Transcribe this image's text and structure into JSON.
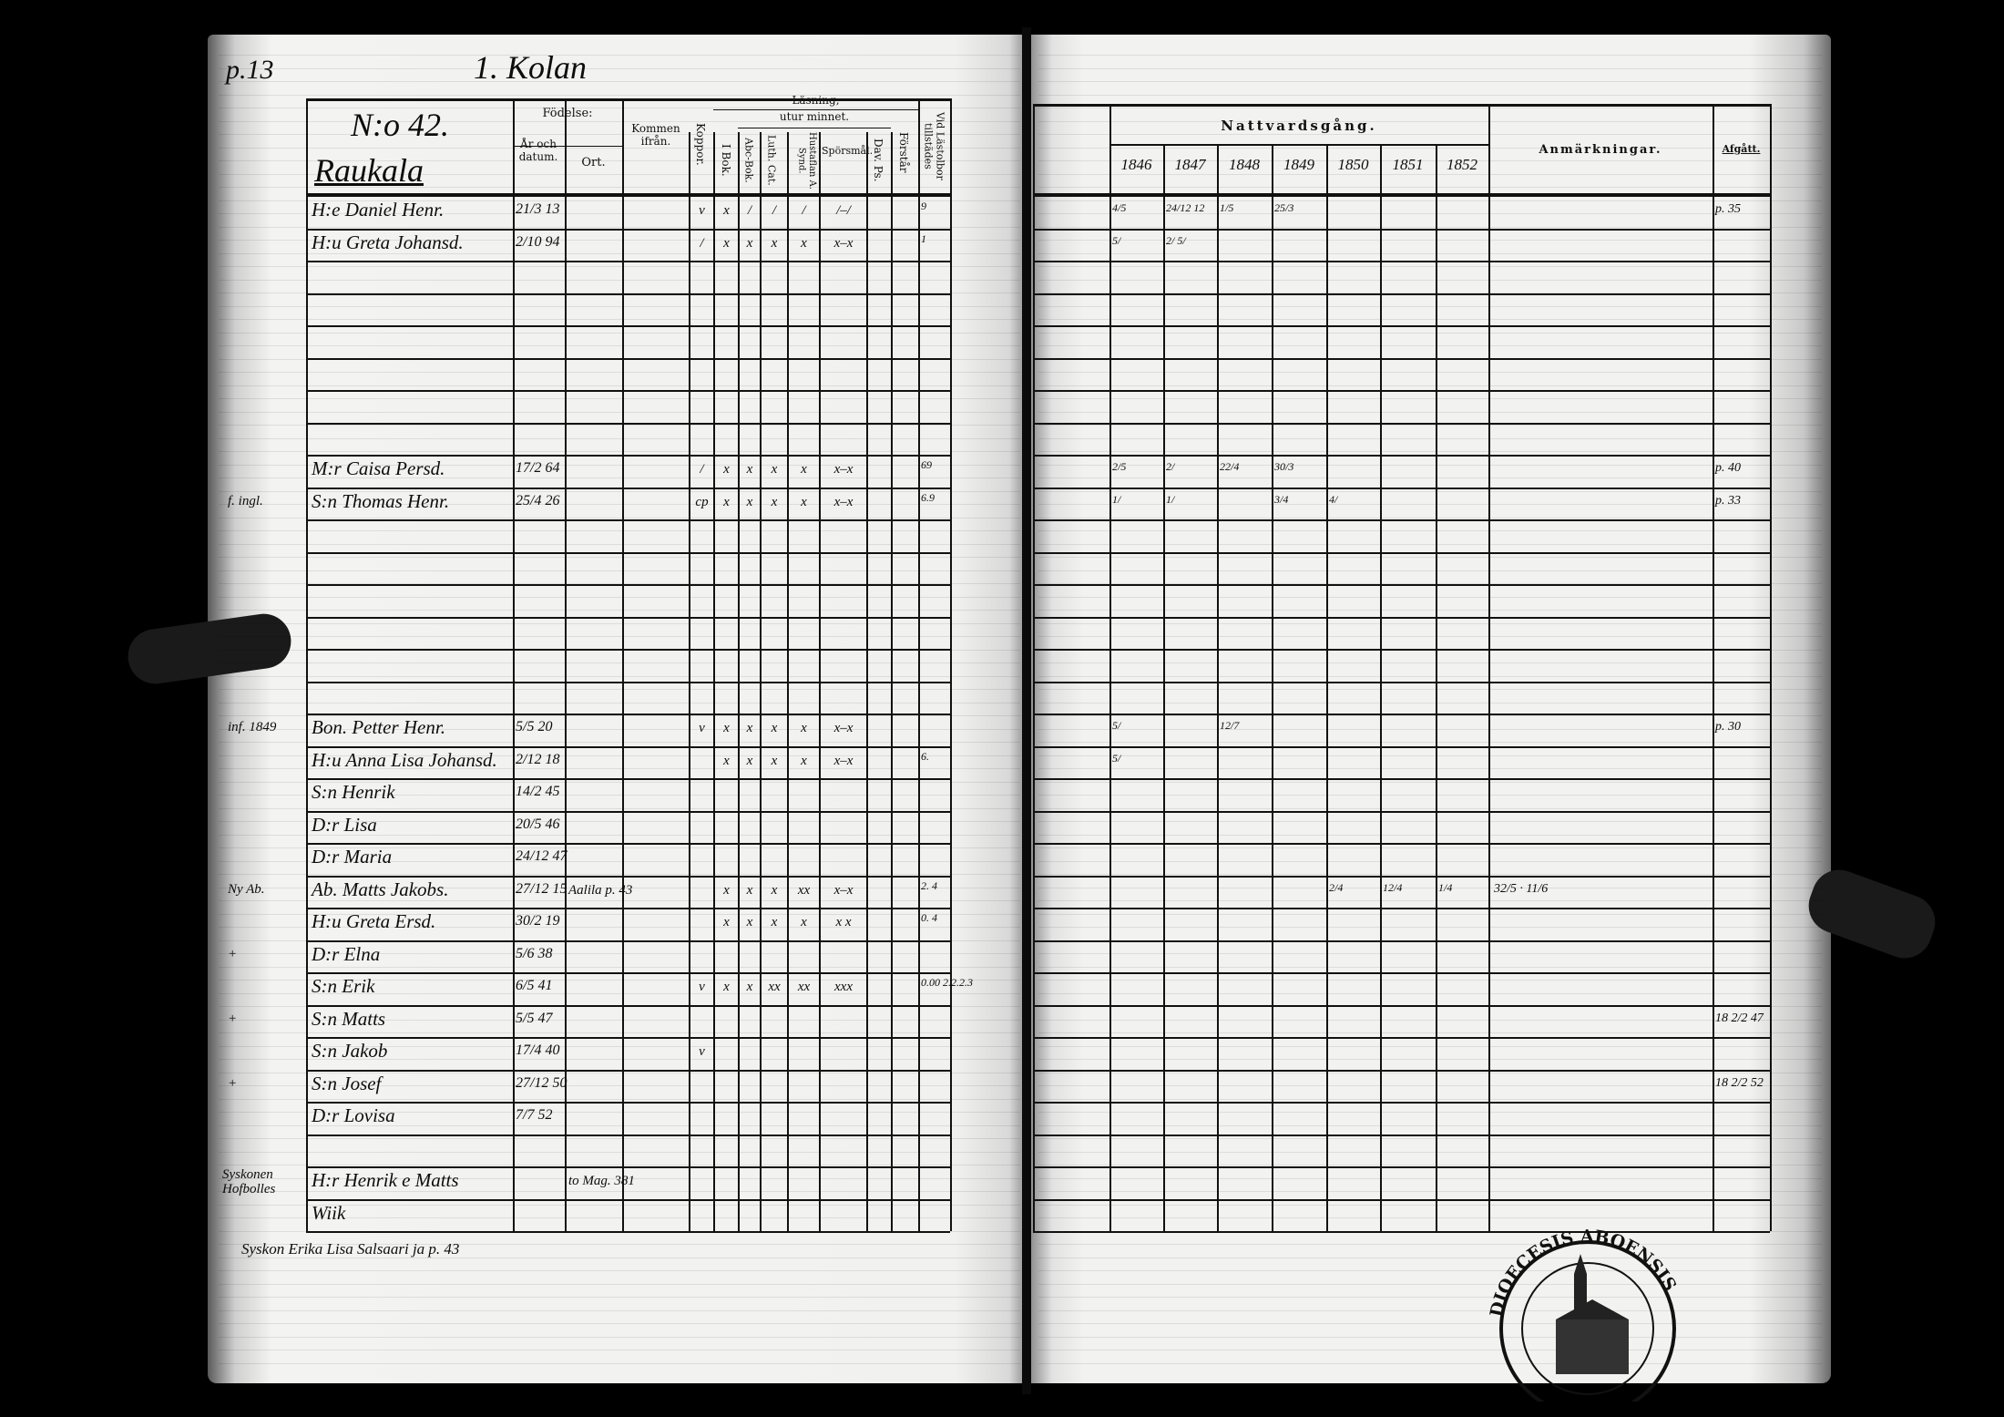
{
  "left_page": {
    "page_number": "p.13",
    "village_heading": "1. Kolan",
    "house_number": "N:o 42.",
    "house_name": "Raukala",
    "headers": {
      "fodelse": "Födelse:",
      "ar_och_datum": "År och datum.",
      "ort": "Ort.",
      "kommen_ifran": "Kommen ifrån.",
      "koppor": "Koppor.",
      "lasning": "Läsning,",
      "utur_minnet": "utur minnet.",
      "i_bok": "I Bok.",
      "abc_bok": "Abc-Bok.",
      "luth_cat": "Luth. Cat.",
      "hustaflan": "Hustaflan A. Synd.",
      "sporsmal": "Spörsmål.",
      "dav_ps": "Dav. Ps.",
      "forstar": "Förstår",
      "vid_lastolbor": "Vid Lästolbor tillstädes"
    },
    "rows": [
      {
        "row": 0,
        "margin": "",
        "name": "H:e Daniel Henr.",
        "born": "21/3 13",
        "marks": [
          "v",
          "x",
          "/",
          "/",
          "/",
          "/–/",
          "",
          ""
        ],
        "lastol": "9"
      },
      {
        "row": 1,
        "margin": "",
        "name": "H:u Greta Johansd.",
        "born": "2/10 94",
        "marks": [
          "/",
          "x",
          "x",
          "x",
          "x",
          "x–x",
          "",
          ""
        ],
        "lastol": "1"
      },
      {
        "row": 8,
        "margin": "",
        "name": "M:r Caisa Persd.",
        "born": "17/2 64",
        "marks": [
          "/",
          "x",
          "x",
          "x",
          "x",
          "x–x",
          "",
          ""
        ],
        "lastol": "69"
      },
      {
        "row": 9,
        "margin": "f. ingl.",
        "name": "S:n Thomas Henr.",
        "born": "25/4 26",
        "marks": [
          "cp",
          "x",
          "x",
          "x",
          "x",
          "x–x",
          "",
          ""
        ],
        "lastol": "6.9"
      },
      {
        "row": 16,
        "margin": "inf. 1849",
        "name": "Bon. Petter Henr.",
        "born": "5/5 20",
        "marks": [
          "v",
          "x",
          "x",
          "x",
          "x",
          "x–x",
          "",
          ""
        ],
        "lastol": ""
      },
      {
        "row": 17,
        "margin": "",
        "name": "H:u Anna Lisa Johansd.",
        "born": "2/12 18",
        "marks": [
          "",
          "x",
          "x",
          "x",
          "x",
          "x–x",
          "",
          ""
        ],
        "lastol": "6."
      },
      {
        "row": 18,
        "margin": "",
        "name": "S:n Henrik",
        "born": "14/2 45",
        "marks": [
          "",
          "",
          "",
          "",
          "",
          "",
          "",
          ""
        ],
        "lastol": ""
      },
      {
        "row": 19,
        "margin": "",
        "name": "D:r Lisa",
        "born": "20/5 46",
        "marks": [
          "",
          "",
          "",
          "",
          "",
          "",
          "",
          ""
        ],
        "lastol": ""
      },
      {
        "row": 20,
        "margin": "",
        "name": "D:r Maria",
        "born": "24/12 47",
        "marks": [
          "",
          "",
          "",
          "",
          "",
          "",
          "",
          ""
        ],
        "lastol": ""
      },
      {
        "row": 21,
        "margin": "Ny Ab.",
        "name": "Ab. Matts Jakobs.",
        "born": "27/12 15",
        "kommen": "Aalila p. 43",
        "marks": [
          "",
          "x",
          "x",
          "x",
          "xx",
          "x–x",
          "",
          ""
        ],
        "lastol": "2. 4"
      },
      {
        "row": 22,
        "margin": "",
        "name": "H:u Greta Ersd.",
        "born": "30/2 19",
        "marks": [
          "",
          "x",
          "x",
          "x",
          "x",
          "x x",
          "",
          ""
        ],
        "lastol": "0. 4"
      },
      {
        "row": 23,
        "margin": "+",
        "name": "D:r Elna",
        "born": "5/6 38",
        "marks": [
          "",
          "",
          "",
          "",
          "",
          "",
          "",
          ""
        ],
        "lastol": ""
      },
      {
        "row": 24,
        "margin": "",
        "name": "S:n Erik",
        "born": "6/5 41",
        "marks": [
          "v",
          "x",
          "x",
          "xx",
          "xx",
          "xxx",
          "",
          ""
        ],
        "lastol": "0.00 2.2.2.3"
      },
      {
        "row": 25,
        "margin": "+",
        "name": "S:n Matts",
        "born": "5/5 47",
        "marks": [
          "",
          "",
          "",
          "",
          "",
          "",
          "",
          ""
        ],
        "lastol": ""
      },
      {
        "row": 26,
        "margin": "",
        "name": "S:n Jakob",
        "born": "17/4 40",
        "marks": [
          "v",
          "",
          "",
          "",
          "",
          "",
          "",
          ""
        ],
        "lastol": ""
      },
      {
        "row": 27,
        "margin": "+",
        "name": "S:n Josef",
        "born": "27/12 50",
        "marks": [
          "",
          "",
          "",
          "",
          "",
          "",
          "",
          ""
        ],
        "lastol": ""
      },
      {
        "row": 28,
        "margin": "",
        "name": "D:r Lovisa",
        "born": "7/7 52",
        "marks": [
          "",
          "",
          "",
          "",
          "",
          "",
          "",
          ""
        ],
        "lastol": ""
      },
      {
        "row": 30,
        "margin": "Syskonen Hofbolles",
        "name": "H:r Henrik e Matts",
        "born": "",
        "kommen": "to Mag. 381",
        "marks": [
          "",
          "",
          "",
          "",
          "",
          "",
          "",
          ""
        ],
        "lastol": ""
      },
      {
        "row": 31,
        "margin": "",
        "name": "Wiik",
        "born": "",
        "marks": [
          "",
          "",
          "",
          "",
          "",
          "",
          "",
          ""
        ],
        "lastol": ""
      }
    ],
    "footnote": "Syskon Erika Lisa Salsaari ja p. 43"
  },
  "right_page": {
    "headers": {
      "nattvardsgang": "Nattvardsgång.",
      "years": [
        "1846",
        "1847",
        "1848",
        "1849",
        "1850",
        "1851",
        "1852"
      ],
      "anmarkningar": "Anmärkningar.",
      "afgatt": "Afgått."
    },
    "rows": [
      {
        "row": 0,
        "comm": [
          "4/5",
          "24/12 12",
          "1/5",
          "25/3",
          "",
          "",
          ""
        ],
        "anm": "",
        "afgatt": "p. 35"
      },
      {
        "row": 1,
        "comm": [
          "5/",
          "2/ 5/",
          "",
          "",
          "",
          "",
          ""
        ],
        "anm": "",
        "afgatt": ""
      },
      {
        "row": 8,
        "comm": [
          "2/5",
          "2/",
          "22/4",
          "30/3",
          "",
          "",
          ""
        ],
        "anm": "",
        "afgatt": "p. 40"
      },
      {
        "row": 9,
        "comm": [
          "1/",
          "1/",
          "",
          "3/4",
          "4/",
          "",
          ""
        ],
        "anm": "",
        "afgatt": "p. 33"
      },
      {
        "row": 16,
        "comm": [
          "5/",
          "",
          "12/7",
          "",
          "",
          "",
          ""
        ],
        "anm": "",
        "afgatt": "p. 30"
      },
      {
        "row": 17,
        "comm": [
          "5/",
          "",
          "",
          "",
          "",
          "",
          ""
        ],
        "anm": "",
        "afgatt": ""
      },
      {
        "row": 21,
        "comm": [
          "",
          "",
          "",
          "",
          "2/4",
          "12/4",
          "1/4"
        ],
        "anm": "32/5 · 11/6",
        "afgatt": ""
      },
      {
        "row": 22,
        "comm": [
          "",
          "",
          "",
          "",
          "",
          "",
          ""
        ],
        "anm": "",
        "afgatt": ""
      },
      {
        "row": 25,
        "comm": [
          "",
          "",
          "",
          "",
          "",
          "",
          ""
        ],
        "anm": "",
        "afgatt": "18 2/2 47"
      },
      {
        "row": 27,
        "comm": [
          "",
          "",
          "",
          "",
          "",
          "",
          ""
        ],
        "anm": "",
        "afgatt": "18 2/2 52"
      }
    ]
  },
  "stamp": {
    "text": "DIOECESIS ABOENSIS ARCHIVUM"
  },
  "colors": {
    "paper": "#f1f1ef",
    "ink": "#111111",
    "background": "#000000"
  }
}
